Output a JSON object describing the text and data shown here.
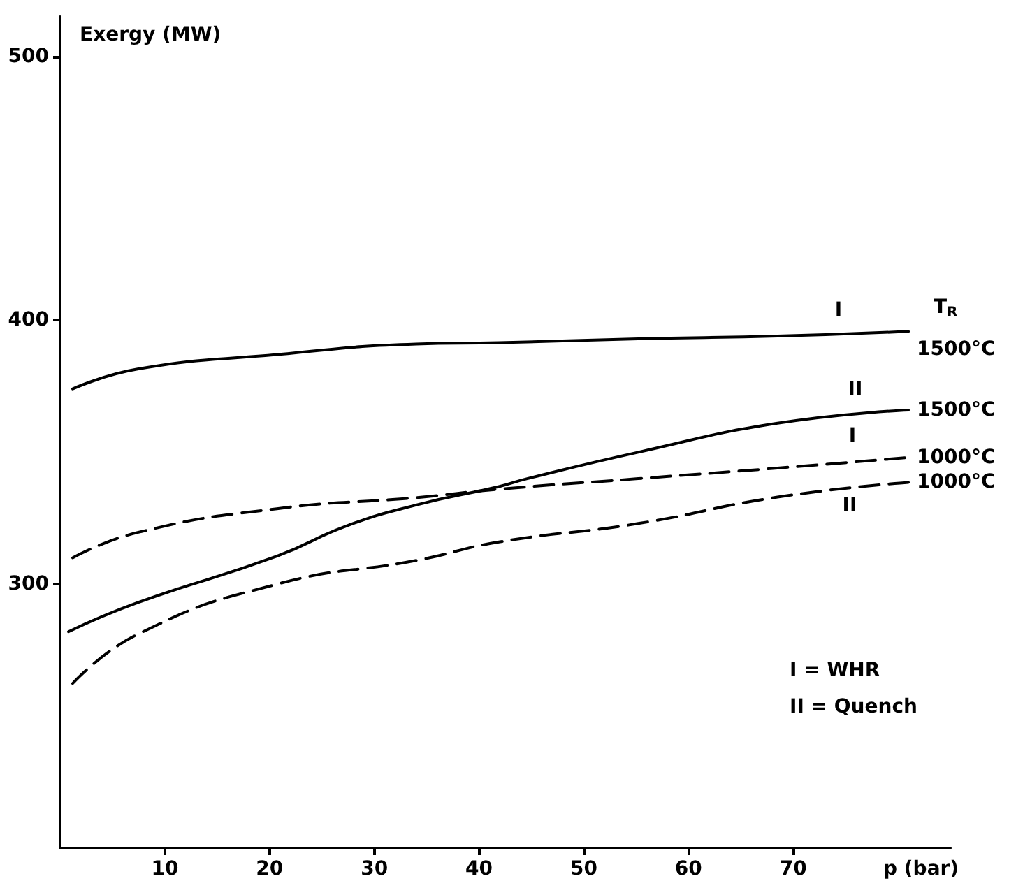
{
  "chart_data": {
    "type": "line",
    "xlabel": "p (bar)",
    "ylabel": "Exergy (MW)",
    "xlim": [
      0,
      85
    ],
    "xticks": [
      10,
      20,
      30,
      40,
      50,
      60,
      70
    ],
    "ylim": [
      200,
      515
    ],
    "yticks": [
      300,
      400,
      500
    ],
    "grid": false,
    "legend": false,
    "marker": "none",
    "series": [
      {
        "name": "1500°C",
        "color": "#000000",
        "line_style": "solid",
        "x": [
          1.2,
          7.4,
          20.7,
          34,
          41.9,
          55.2,
          68.5,
          81
        ],
        "values": [
          374,
          381.5,
          387,
          391,
          391.5,
          393,
          394,
          395.8
        ]
      },
      {
        "name": "1500°C",
        "color": "#000000",
        "line_style": "solid",
        "x": [
          0.8,
          7.4,
          20.7,
          27.3,
          34,
          41.9,
          44.6,
          55.2,
          68.5,
          81
        ],
        "values": [
          282,
          293,
          310.6,
          322,
          330,
          337,
          340,
          350,
          361,
          366
        ]
      },
      {
        "name": "1000°C",
        "color": "#000000",
        "line_style": "dashed",
        "x": [
          1.2,
          7.4,
          20.7,
          34,
          41.9,
          55.2,
          68.5,
          81
        ],
        "values": [
          310,
          319.6,
          328.6,
          332.8,
          336,
          340,
          344,
          348
        ]
      },
      {
        "name": "1000°C",
        "color": "#000000",
        "line_style": "dashed",
        "x": [
          1.2,
          7.4,
          20.7,
          34,
          41.9,
          55.2,
          68.5,
          81
        ],
        "values": [
          262.4,
          281,
          300,
          309,
          316,
          323,
          333,
          338.6
        ]
      }
    ],
    "annotations": [
      "T$_{R}$",
      "I",
      "II",
      "I",
      "II",
      "I = WHR",
      "II = Quench"
    ]
  }
}
